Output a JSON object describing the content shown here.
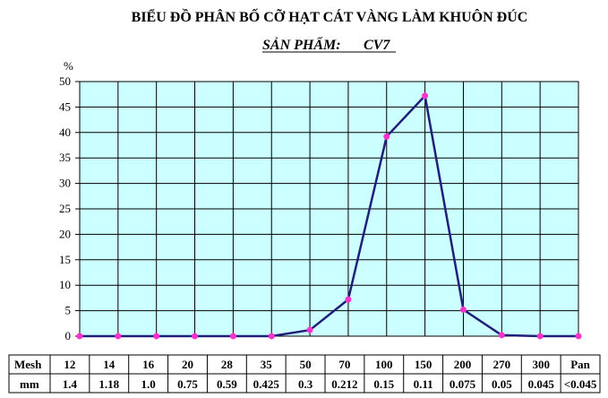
{
  "chart_data": {
    "type": "line",
    "title": "BIỂU ĐỒ PHÂN BỐ CỠ HẠT CÁT VÀNG LÀM KHUÔN ĐÚC",
    "subtitle": {
      "label": "SẢN PHẨM:",
      "product": "CV7"
    },
    "ylabel": "%",
    "ylim": [
      0,
      50
    ],
    "yticks": [
      "0",
      "5",
      "10",
      "15",
      "20",
      "25",
      "30",
      "35",
      "40",
      "45",
      "50"
    ],
    "grid": true,
    "colors": {
      "plot_bg": "#ccffff",
      "line": "#1f1f7a",
      "marker": "#ff33cc",
      "grid": "#000000"
    },
    "table": {
      "mesh_label": "Mesh",
      "mm_label": "mm",
      "mesh": [
        "12",
        "14",
        "16",
        "20",
        "28",
        "35",
        "50",
        "70",
        "100",
        "150",
        "200",
        "270",
        "300",
        "Pan"
      ],
      "mm": [
        "1.4",
        "1.18",
        "1.0",
        "0.75",
        "0.59",
        "0.425",
        "0.3",
        "0.212",
        "0.15",
        "0.11",
        "0.075",
        "0.05",
        "0.045",
        "<0.045"
      ]
    },
    "series": [
      {
        "values": [
          0,
          0,
          0,
          0,
          0,
          0,
          1.2,
          7.2,
          39.2,
          47.2,
          5.2,
          0.2,
          0,
          0
        ]
      }
    ]
  }
}
